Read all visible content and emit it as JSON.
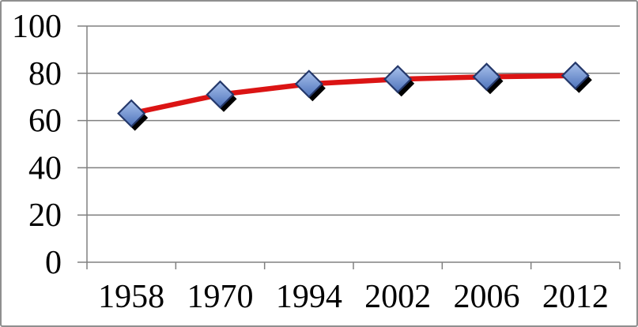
{
  "chart_data": {
    "type": "line",
    "title": "",
    "categories": [
      "1958",
      "1970",
      "1994",
      "2002",
      "2006",
      "2012"
    ],
    "values": [
      63,
      71,
      75.5,
      77.5,
      78.5,
      79
    ],
    "ylim": [
      0,
      100
    ],
    "yticks": [
      0,
      20,
      40,
      60,
      80,
      100
    ],
    "grid": true,
    "legend": false,
    "xlabel": "",
    "ylabel": "",
    "colors": {
      "line": "#db1414",
      "marker_fill_top": "#a8c1ec",
      "marker_fill_bottom": "#4e73bb",
      "marker_stroke": "#24386b",
      "marker_shadow": "#000000",
      "grid": "#808080",
      "axis": "#808080",
      "text": "#000000",
      "frame_border": "#8f8f8f",
      "background": "#ffffff"
    }
  }
}
